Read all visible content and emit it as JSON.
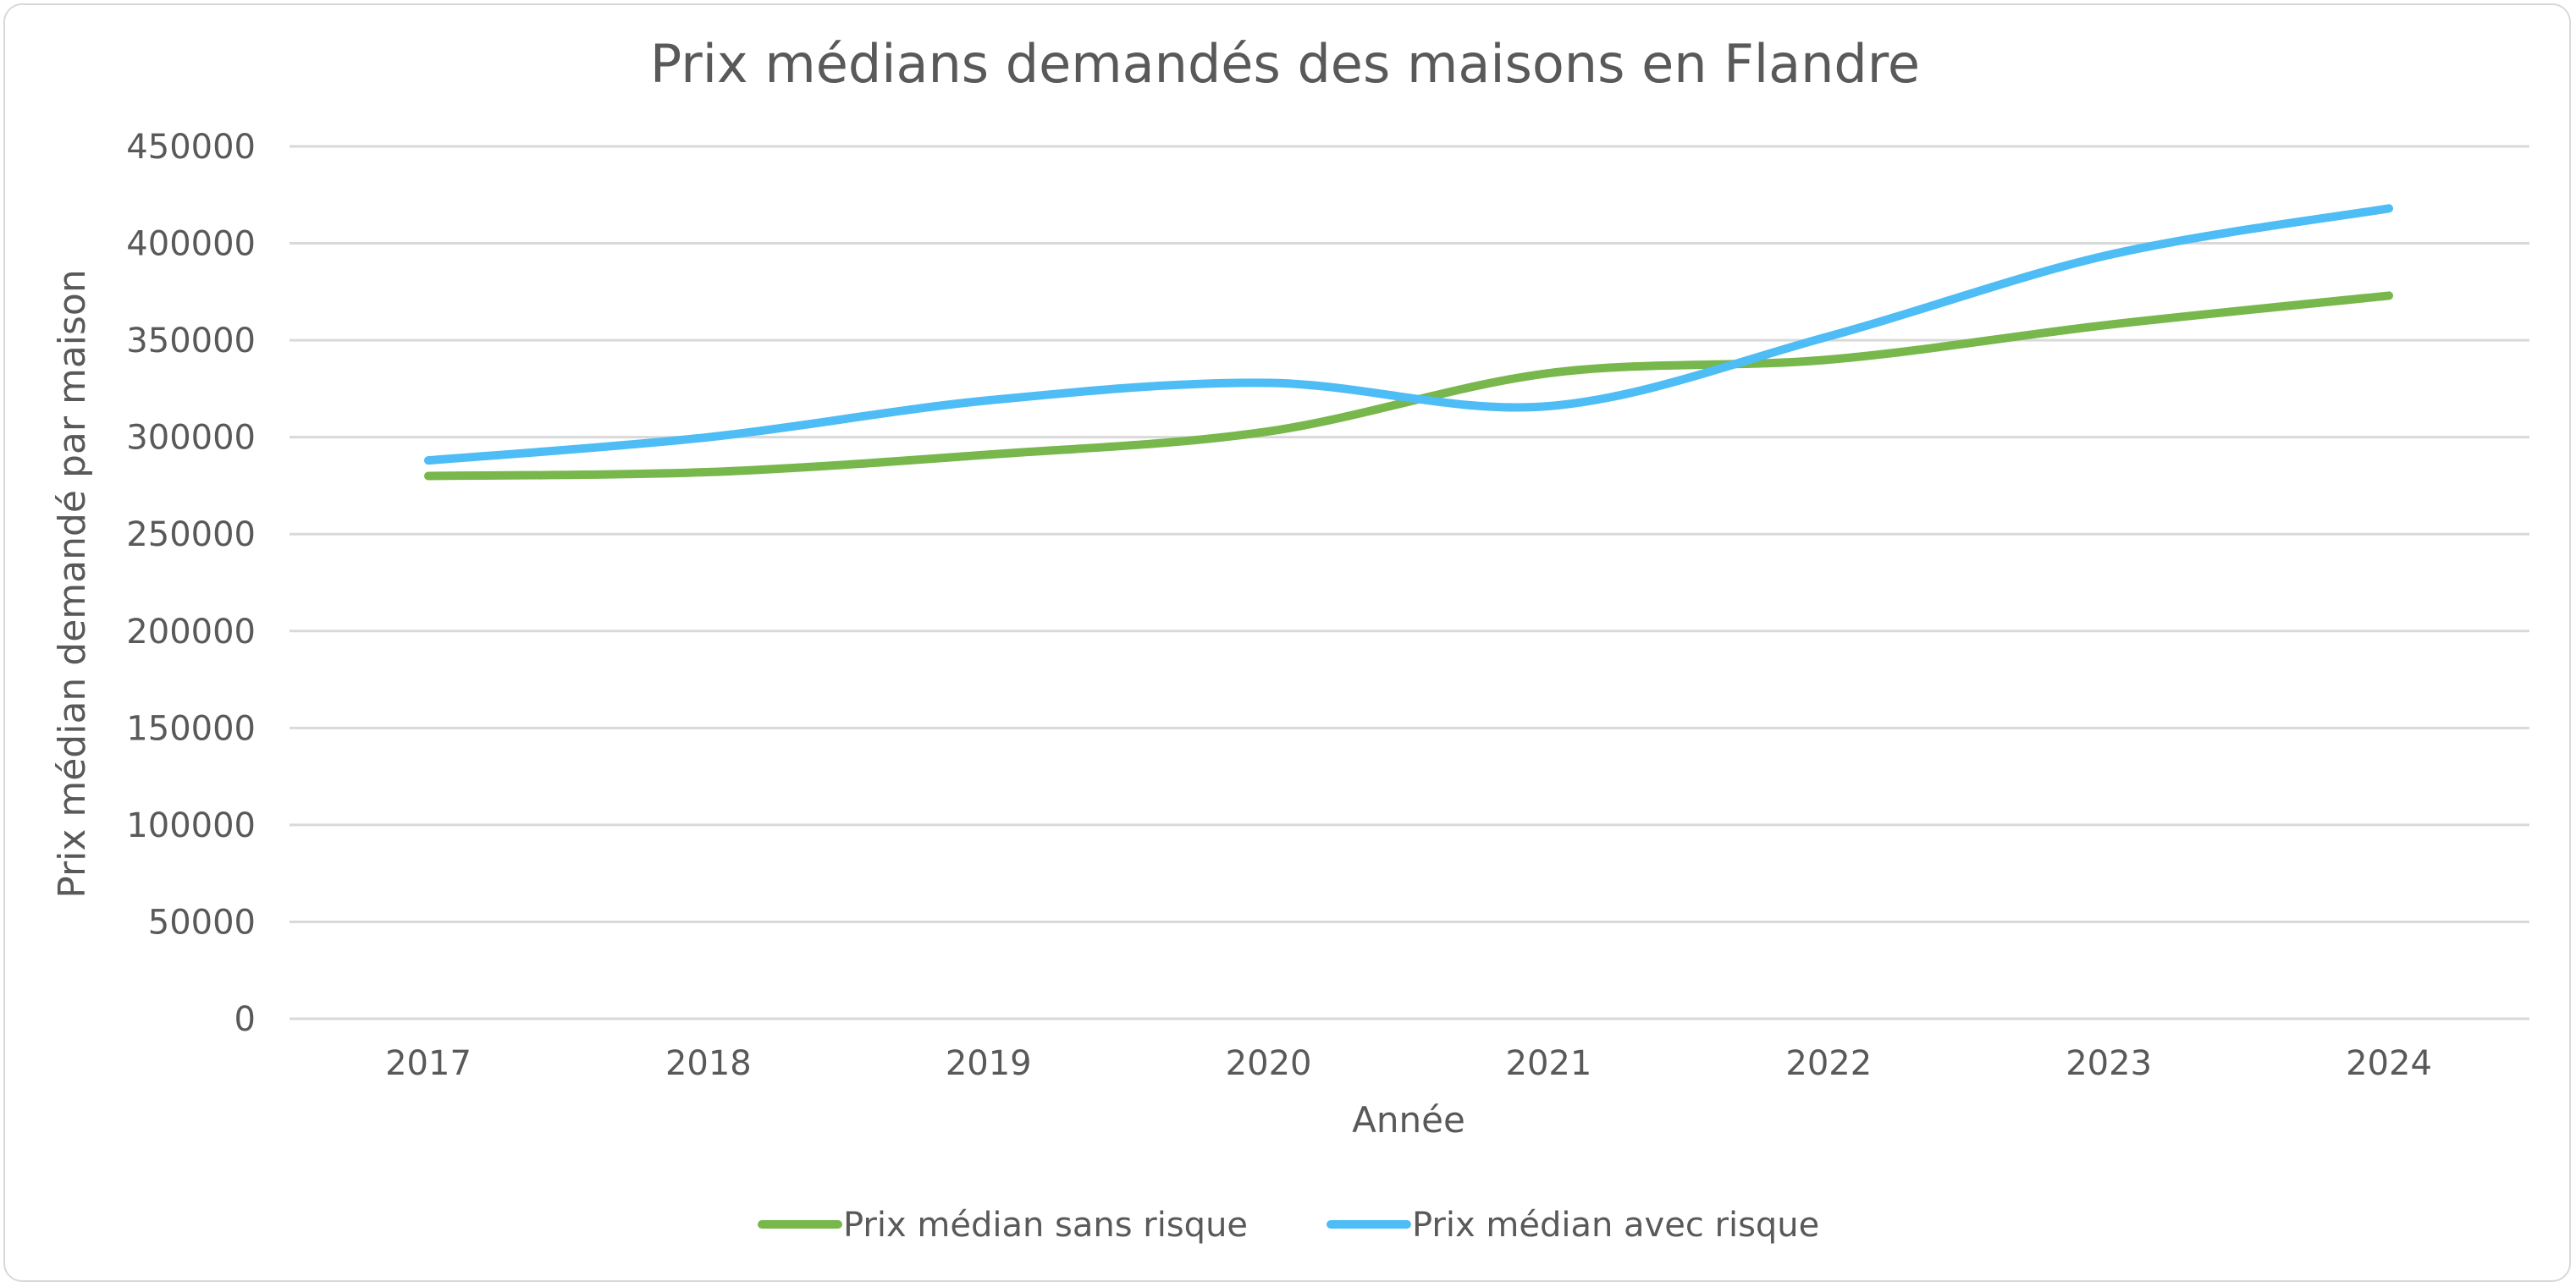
{
  "chart_data": {
    "type": "line",
    "title": "Prix médians demandés des maisons en Flandre",
    "xlabel": "Année",
    "ylabel": "Prix médian demandé par maison",
    "categories": [
      "2017",
      "2018",
      "2019",
      "2020",
      "2021",
      "2022",
      "2023",
      "2024"
    ],
    "ylim": [
      0,
      450000
    ],
    "yticks": [
      "0",
      "50000",
      "100000",
      "150000",
      "200000",
      "250000",
      "300000",
      "350000",
      "400000",
      "450000"
    ],
    "grid": true,
    "smooth": true,
    "legend_position": "bottom",
    "series": [
      {
        "name": "Prix médian sans risque",
        "color": "#77b74b",
        "values": [
          280000,
          282000,
          291000,
          303000,
          333000,
          340000,
          358000,
          373000
        ]
      },
      {
        "name": "Prix médian avec risque",
        "color": "#4ebdf5",
        "values": [
          288000,
          300000,
          319000,
          328000,
          316000,
          352000,
          394000,
          418000
        ]
      }
    ]
  }
}
